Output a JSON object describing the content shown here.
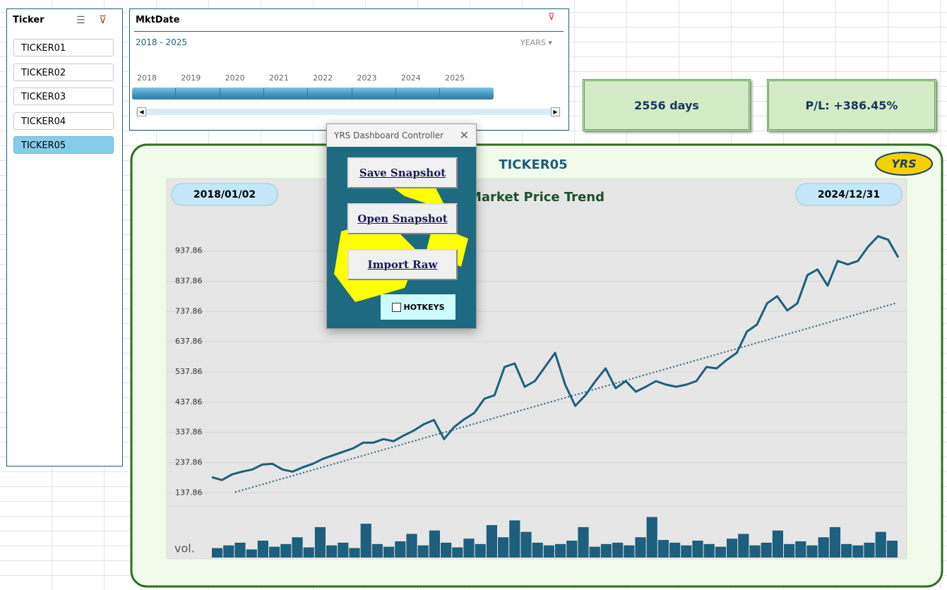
{
  "slicer": {
    "title": "Ticker",
    "items": [
      "TICKER01",
      "TICKER02",
      "TICKER03",
      "TICKER04",
      "TICKER05"
    ],
    "selected": 4
  },
  "timeline": {
    "title": "MktDate",
    "range": "2018 - 2025",
    "level": "YEARS",
    "years": [
      "2018",
      "2019",
      "2020",
      "2021",
      "2022",
      "2023",
      "2024",
      "2025"
    ]
  },
  "kpis": [
    "2556 days",
    "P/L: +386.45%"
  ],
  "logo": "YRS",
  "dialog": {
    "title": "YRS Dashboard Controller",
    "buttons": [
      "Save Snapshot",
      "Open Snapshot",
      "Import Raw"
    ],
    "checkbox": "HOTKEYS"
  },
  "chart_data": {
    "type": "line",
    "title": "TICKER05",
    "subtitle": "Market Price Trend",
    "start_label": "2018/01/02",
    "end_label": "2024/12/31",
    "ylim": [
      105.86,
      1025.86
    ],
    "yticks": [
      137.86,
      237.86,
      337.86,
      437.86,
      537.86,
      637.86,
      737.86,
      837.86,
      937.86
    ],
    "grid": true,
    "series": [
      {
        "color": "#1d5f7c",
        "values": [
          189.4,
          180.0,
          198.7,
          208.0,
          215.0,
          231.4,
          233.8,
          215.0,
          208.0,
          222.1,
          233.8,
          250.1,
          261.8,
          273.5,
          285.2,
          303.9,
          303.9,
          315.6,
          308.6,
          327.3,
          343.7,
          364.7,
          378.8,
          315.6,
          355.4,
          381.1,
          402.2,
          449.0,
          460.6,
          554.2,
          565.9,
          488.7,
          507.4,
          554.2,
          601.0,
          495.7,
          425.6,
          460.6,
          507.4,
          549.5,
          484.0,
          507.4,
          472.4,
          488.7,
          507.4,
          495.7,
          488.7,
          495.7,
          507.4,
          554.2,
          549.5,
          577.6,
          601.0,
          671.1,
          694.5,
          764.7,
          788.1,
          741.3,
          764.7,
          858.3,
          877.0,
          823.2,
          905.1,
          893.4,
          905.1,
          951.9,
          986.9,
          975.2,
          916.8
        ]
      }
    ],
    "trend": {
      "color": "#1d5f7c",
      "values": [
        140,
        765
      ]
    },
    "volume": {
      "label": "vol.",
      "color": "#1d5f7c",
      "ylim": [
        0,
        70
      ],
      "values": [
        14,
        18,
        22,
        12,
        25,
        16,
        20,
        30,
        15,
        45,
        18,
        22,
        14,
        50,
        20,
        16,
        24,
        35,
        18,
        40,
        22,
        15,
        28,
        20,
        48,
        30,
        55,
        38,
        22,
        18,
        20,
        25,
        45,
        16,
        20,
        22,
        18,
        30,
        60,
        26,
        22,
        18,
        25,
        20,
        16,
        28,
        35,
        18,
        22,
        40,
        20,
        24,
        18,
        30,
        45,
        20,
        18,
        22,
        38,
        25
      ]
    }
  }
}
